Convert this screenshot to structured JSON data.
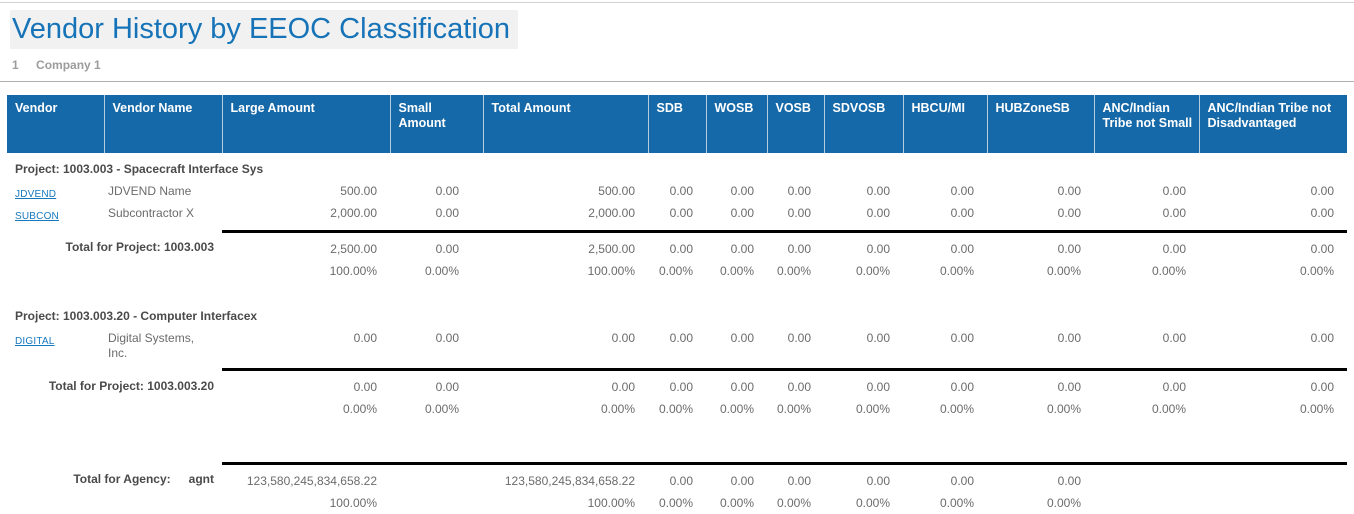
{
  "page": {
    "title": "Vendor History by EEOC Classification",
    "company_number": "1",
    "company_name": "Company 1"
  },
  "colors": {
    "header_bg": "#1669A8",
    "title_blue": "#1673B8",
    "link_blue": "#1778BE",
    "total_rule": "#000000"
  },
  "table": {
    "columns": [
      "Vendor",
      "Vendor Name",
      "Large Amount",
      "Small Amount",
      "Total Amount",
      "SDB",
      "WOSB",
      "VOSB",
      "SDVOSB",
      "HBCU/MI",
      "HUBZoneSB",
      "ANC/Indian Tribe not Small",
      "ANC/Indian Tribe not Disadvantaged"
    ],
    "projects": [
      {
        "header": "Project: 1003.003 - Spacecraft Interface Sys",
        "vendors": [
          {
            "code": "JDVEND",
            "name": "JDVEND Name",
            "values": [
              "500.00",
              "0.00",
              "500.00",
              "0.00",
              "0.00",
              "0.00",
              "0.00",
              "0.00",
              "0.00",
              "0.00",
              "0.00"
            ]
          },
          {
            "code": "SUBCON",
            "name": "Subcontractor X",
            "values": [
              "2,000.00",
              "0.00",
              "2,000.00",
              "0.00",
              "0.00",
              "0.00",
              "0.00",
              "0.00",
              "0.00",
              "0.00",
              "0.00"
            ]
          }
        ],
        "total_label": "Total for Project: 1003.003",
        "total_values": [
          "2,500.00",
          "0.00",
          "2,500.00",
          "0.00",
          "0.00",
          "0.00",
          "0.00",
          "0.00",
          "0.00",
          "0.00",
          "0.00"
        ],
        "total_percents": [
          "100.00%",
          "0.00%",
          "100.00%",
          "0.00%",
          "0.00%",
          "0.00%",
          "0.00%",
          "0.00%",
          "0.00%",
          "0.00%",
          "0.00%"
        ]
      },
      {
        "header": "Project: 1003.003.20 - Computer Interfacex",
        "vendors": [
          {
            "code": "DIGITAL",
            "name": "Digital Systems, Inc.",
            "values": [
              "0.00",
              "0.00",
              "0.00",
              "0.00",
              "0.00",
              "0.00",
              "0.00",
              "0.00",
              "0.00",
              "0.00",
              "0.00"
            ]
          }
        ],
        "total_label": "Total for Project: 1003.003.20",
        "total_values": [
          "0.00",
          "0.00",
          "0.00",
          "0.00",
          "0.00",
          "0.00",
          "0.00",
          "0.00",
          "0.00",
          "0.00",
          "0.00"
        ],
        "total_percents": [
          "0.00%",
          "0.00%",
          "0.00%",
          "0.00%",
          "0.00%",
          "0.00%",
          "0.00%",
          "0.00%",
          "0.00%",
          "0.00%",
          "0.00%"
        ]
      }
    ],
    "agency": {
      "label": "Total for Agency:",
      "name": "agnt",
      "values": [
        "123,580,245,834,658.22",
        "",
        "123,580,245,834,658.22",
        "0.00",
        "0.00",
        "0.00",
        "0.00",
        "0.00",
        "0.00",
        "",
        ""
      ],
      "percents": [
        "100.00%",
        "",
        "100.00%",
        "0.00%",
        "0.00%",
        "0.00%",
        "0.00%",
        "0.00%",
        "0.00%",
        "",
        ""
      ]
    }
  }
}
